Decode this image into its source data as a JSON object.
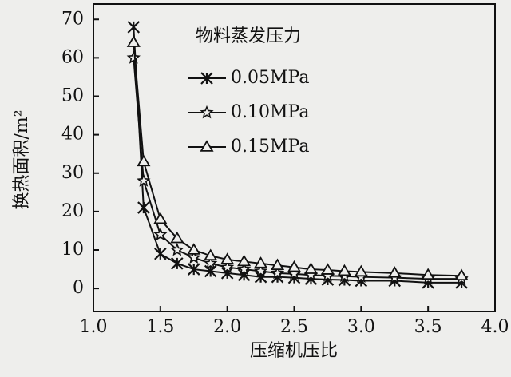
{
  "chart_data": {
    "type": "line",
    "x_label": "压缩机压比",
    "y_label": "换热面积/m²",
    "legend_title": "物料蒸发压力",
    "legend": "upper-center",
    "x": [
      1.3,
      1.375,
      1.5,
      1.625,
      1.75,
      1.875,
      2.0,
      2.125,
      2.25,
      2.375,
      2.5,
      2.625,
      2.75,
      2.875,
      3.0,
      3.25,
      3.5,
      3.75
    ],
    "series": [
      {
        "name": "0.05MPa",
        "color": "#111111",
        "marker": "x-star",
        "values": [
          68,
          21,
          9,
          6.5,
          5,
          4.5,
          4,
          3.5,
          3,
          3,
          2.8,
          2.5,
          2.3,
          2.2,
          2,
          2,
          1.5,
          1.5
        ]
      },
      {
        "name": "0.10MPa",
        "color": "#111111",
        "marker": "star",
        "values": [
          60,
          28,
          14,
          10,
          8,
          6.5,
          5.5,
          5,
          4.5,
          4,
          3.8,
          3.5,
          3.3,
          3.2,
          3,
          2.8,
          2.5,
          2.5
        ]
      },
      {
        "name": "0.15MPa",
        "color": "#111111",
        "marker": "triangle",
        "values": [
          64,
          33,
          18,
          13,
          10,
          8.5,
          7.5,
          7,
          6.5,
          6,
          5.5,
          5,
          4.8,
          4.5,
          4.3,
          4,
          3.5,
          3.3
        ]
      }
    ],
    "xlim": [
      1,
      4
    ],
    "xticks": [
      {
        "value": 1,
        "label": "1.0"
      },
      {
        "value": 1.5,
        "label": "1.5"
      },
      {
        "value": 2,
        "label": "2.0"
      },
      {
        "value": 2.5,
        "label": "2.5"
      },
      {
        "value": 3,
        "label": "3.0"
      },
      {
        "value": 3.5,
        "label": "3.5"
      },
      {
        "value": 4,
        "label": "4.0"
      }
    ],
    "ylim": [
      -6,
      74
    ],
    "yticks": [
      0,
      10,
      20,
      30,
      40,
      50,
      60,
      70
    ]
  }
}
